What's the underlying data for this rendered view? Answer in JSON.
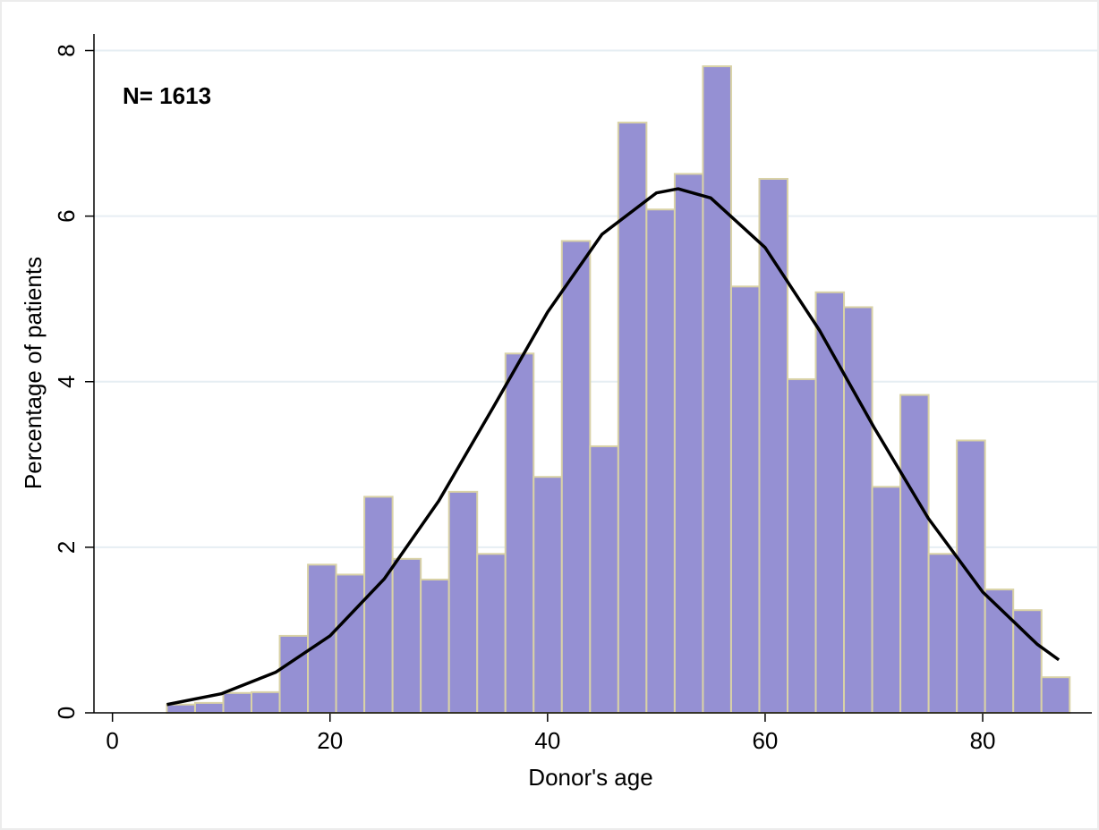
{
  "chart_data": {
    "type": "histogram",
    "x_label": "Donor's age",
    "y_label": "Percentage of patients",
    "annotation": "N= 1613",
    "bins": [
      5,
      7.59375,
      10.1875,
      12.78125,
      15.375,
      17.96875,
      20.5625,
      23.15625,
      25.75,
      28.34375,
      30.9375,
      33.53125,
      36.125,
      38.71875,
      41.3125,
      43.90625,
      46.5,
      49.09375,
      51.6875,
      54.28125,
      56.875,
      59.46875,
      62.0625,
      64.65625,
      67.25,
      69.84375,
      72.4375,
      75.03125,
      77.625,
      80.21875,
      82.8125,
      85.40625,
      88
    ],
    "values": [
      0.1,
      0.12,
      0.24,
      0.25,
      0.93,
      1.79,
      1.67,
      2.61,
      1.86,
      1.61,
      2.67,
      1.92,
      4.34,
      2.85,
      5.7,
      3.22,
      7.13,
      6.08,
      6.51,
      7.81,
      5.15,
      6.45,
      4.03,
      5.08,
      4.9,
      2.73,
      3.84,
      1.92,
      3.29,
      1.49,
      1.24,
      0.43
    ],
    "color": "#9590d3",
    "edge_color": "#d9d2a6",
    "curve": {
      "x": [
        5,
        10,
        15,
        20,
        25,
        30,
        35,
        40,
        45,
        50,
        52,
        55,
        60,
        65,
        70,
        75,
        80,
        85,
        87
      ],
      "values": [
        0.1,
        0.23,
        0.49,
        0.93,
        1.62,
        2.56,
        3.69,
        4.84,
        5.78,
        6.28,
        6.33,
        6.22,
        5.62,
        4.62,
        3.45,
        2.35,
        1.46,
        0.83,
        0.64
      ],
      "color": "#000000"
    },
    "xlim": [
      -1.7,
      90.2
    ],
    "xticks": [
      0,
      20,
      40,
      60,
      80
    ],
    "ylim": [
      0,
      8.2
    ],
    "yticks": [
      0,
      2,
      4,
      6,
      8
    ],
    "grid": true,
    "grid_color": "#e6eef3"
  }
}
